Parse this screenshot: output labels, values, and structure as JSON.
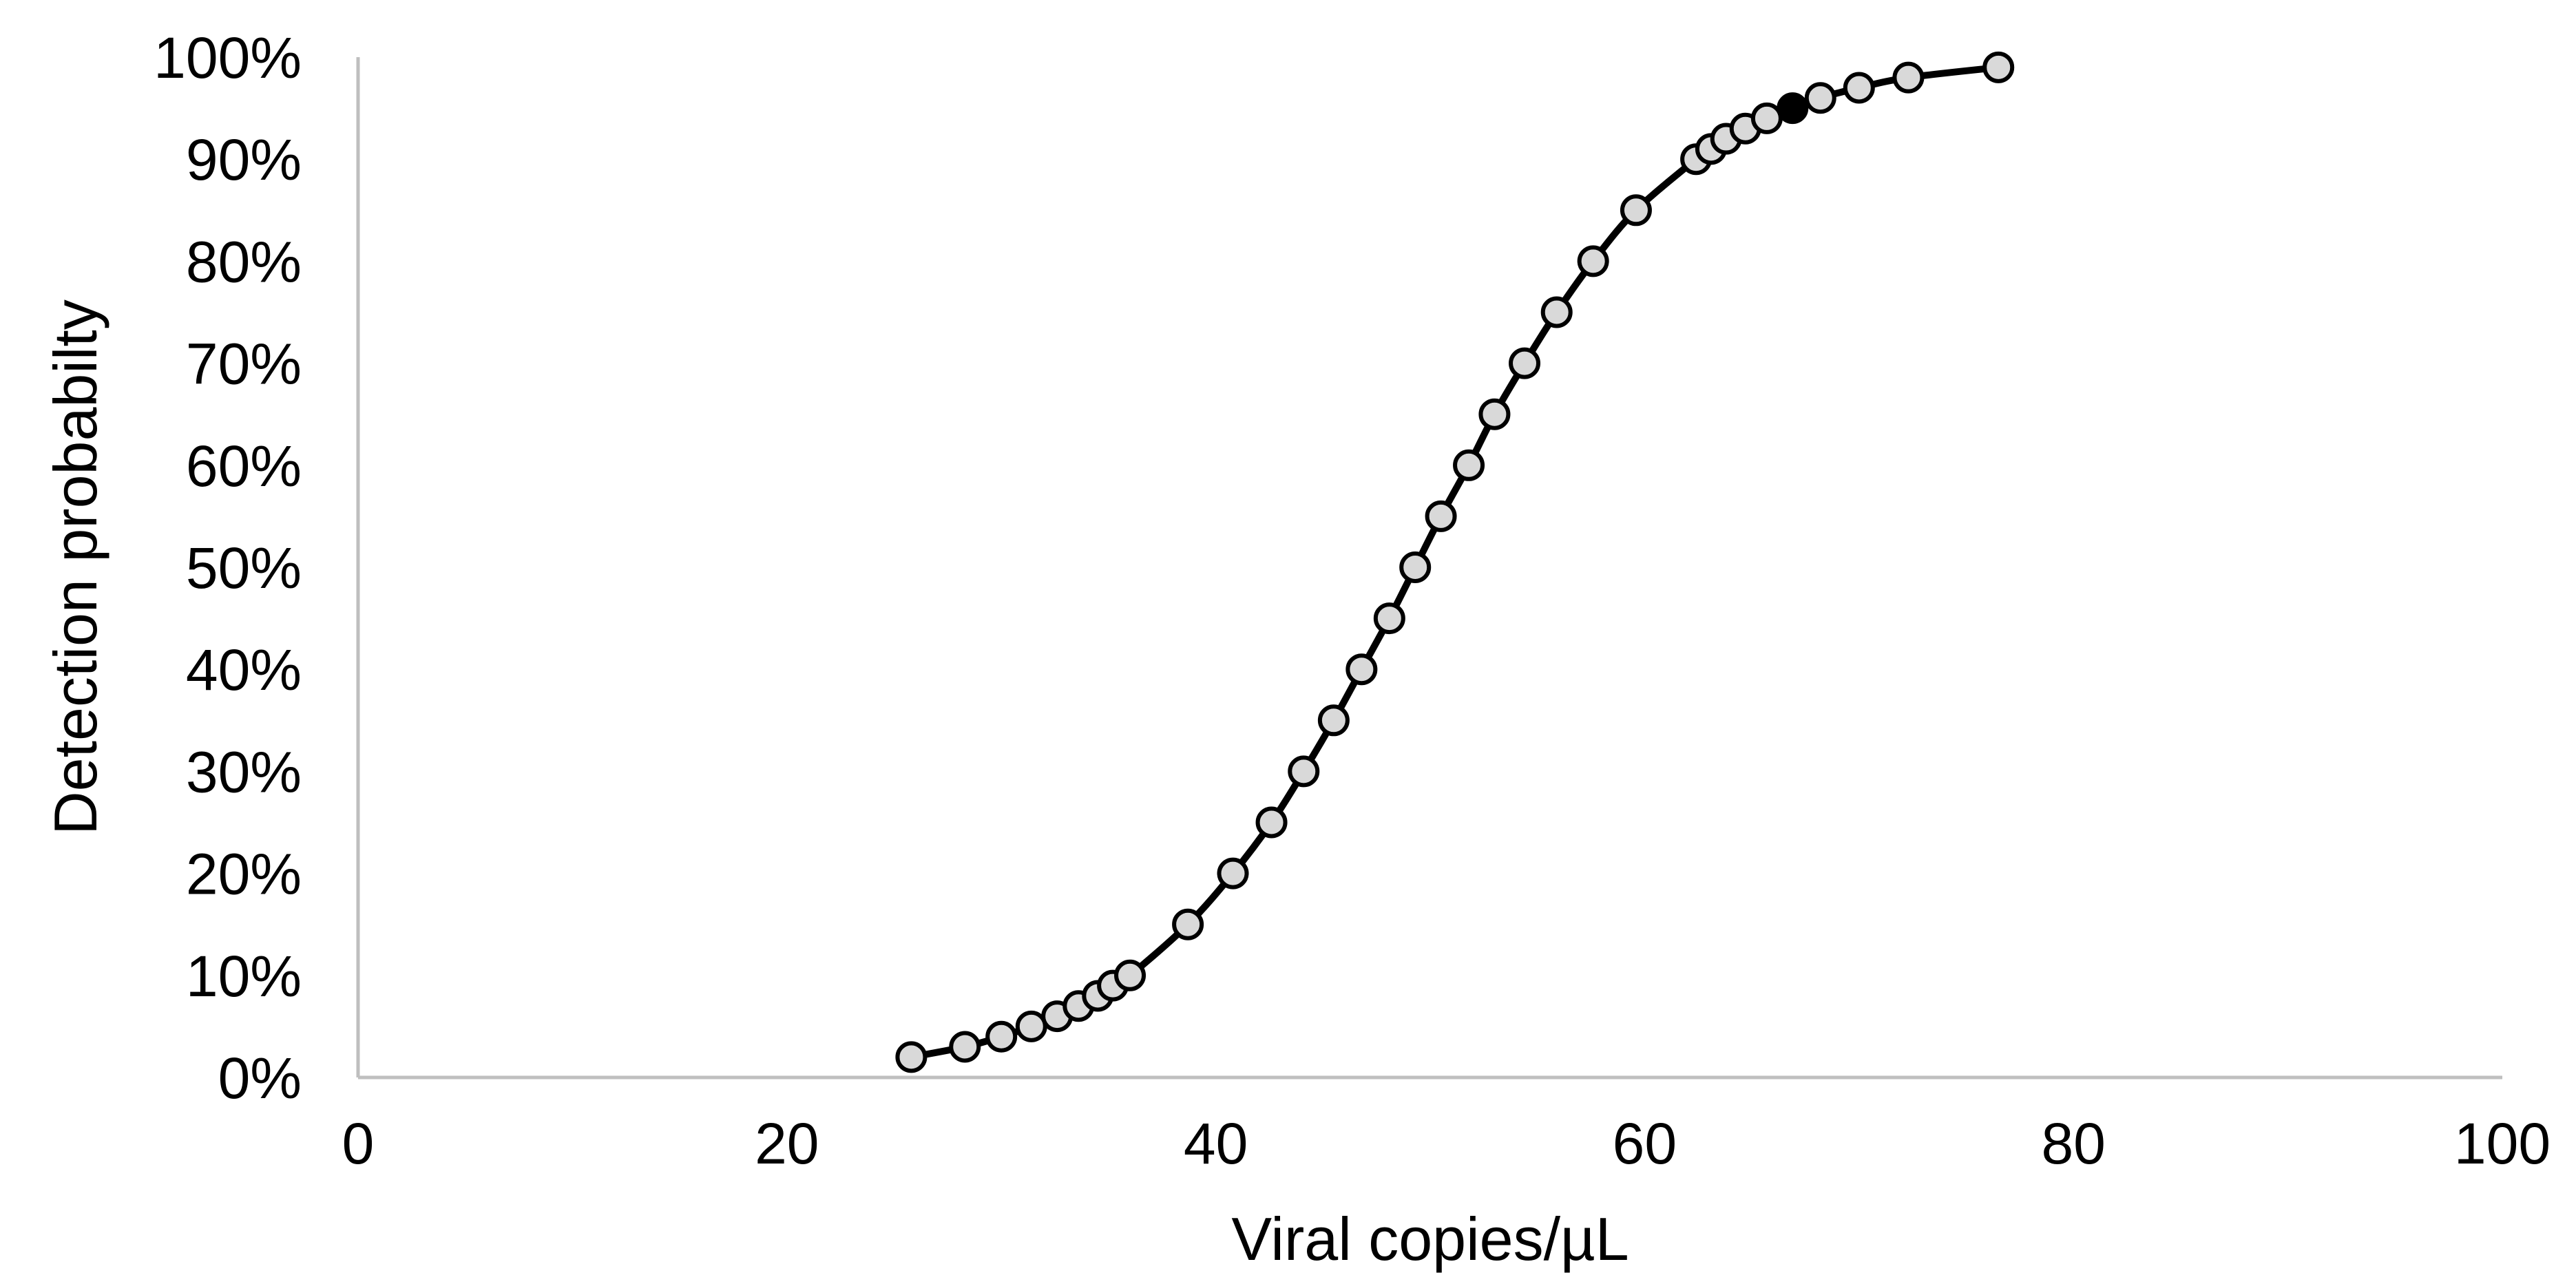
{
  "chart_data": {
    "type": "scatter",
    "xlabel": "Viral copies/µL",
    "ylabel": "Detection probabilty",
    "xlim": [
      0,
      100
    ],
    "ylim": [
      0,
      1
    ],
    "x_ticks": [
      0,
      20,
      40,
      60,
      80,
      100
    ],
    "x_tick_labels": [
      "0",
      "20",
      "40",
      "60",
      "80",
      "100"
    ],
    "y_ticks": [
      0,
      0.1,
      0.2,
      0.3,
      0.4,
      0.5,
      0.6,
      0.7,
      0.8,
      0.9,
      1.0
    ],
    "y_tick_labels": [
      "0%",
      "10%",
      "20%",
      "30%",
      "40%",
      "50%",
      "60%",
      "70%",
      "80%",
      "90%",
      "100%"
    ],
    "grid": false,
    "series": [
      {
        "line": true,
        "line_color": "#000000",
        "marker_fill": "#d9d9d9",
        "marker_edge": "#000000",
        "points": [
          {
            "x": 25.8,
            "y": 0.02
          },
          {
            "x": 28.3,
            "y": 0.03
          },
          {
            "x": 30.0,
            "y": 0.04
          },
          {
            "x": 31.4,
            "y": 0.05
          },
          {
            "x": 32.6,
            "y": 0.06
          },
          {
            "x": 33.6,
            "y": 0.07
          },
          {
            "x": 34.5,
            "y": 0.08
          },
          {
            "x": 35.2,
            "y": 0.09
          },
          {
            "x": 36.0,
            "y": 0.1
          },
          {
            "x": 38.7,
            "y": 0.15
          },
          {
            "x": 40.8,
            "y": 0.2
          },
          {
            "x": 42.6,
            "y": 0.25
          },
          {
            "x": 44.1,
            "y": 0.3
          },
          {
            "x": 45.5,
            "y": 0.35
          },
          {
            "x": 46.8,
            "y": 0.4
          },
          {
            "x": 48.1,
            "y": 0.45
          },
          {
            "x": 49.3,
            "y": 0.5
          },
          {
            "x": 50.5,
            "y": 0.55
          },
          {
            "x": 51.8,
            "y": 0.6
          },
          {
            "x": 53.0,
            "y": 0.65
          },
          {
            "x": 54.4,
            "y": 0.7
          },
          {
            "x": 55.9,
            "y": 0.75
          },
          {
            "x": 57.6,
            "y": 0.8
          },
          {
            "x": 59.6,
            "y": 0.85
          },
          {
            "x": 62.4,
            "y": 0.9
          },
          {
            "x": 63.1,
            "y": 0.91
          },
          {
            "x": 63.8,
            "y": 0.92
          },
          {
            "x": 64.7,
            "y": 0.93
          },
          {
            "x": 65.7,
            "y": 0.94
          },
          {
            "x": 66.9,
            "y": 0.95,
            "highlight": true,
            "marker_fill": "#000000"
          },
          {
            "x": 68.2,
            "y": 0.96
          },
          {
            "x": 70.0,
            "y": 0.97
          },
          {
            "x": 72.3,
            "y": 0.98
          },
          {
            "x": 76.5,
            "y": 0.99
          }
        ]
      }
    ]
  }
}
